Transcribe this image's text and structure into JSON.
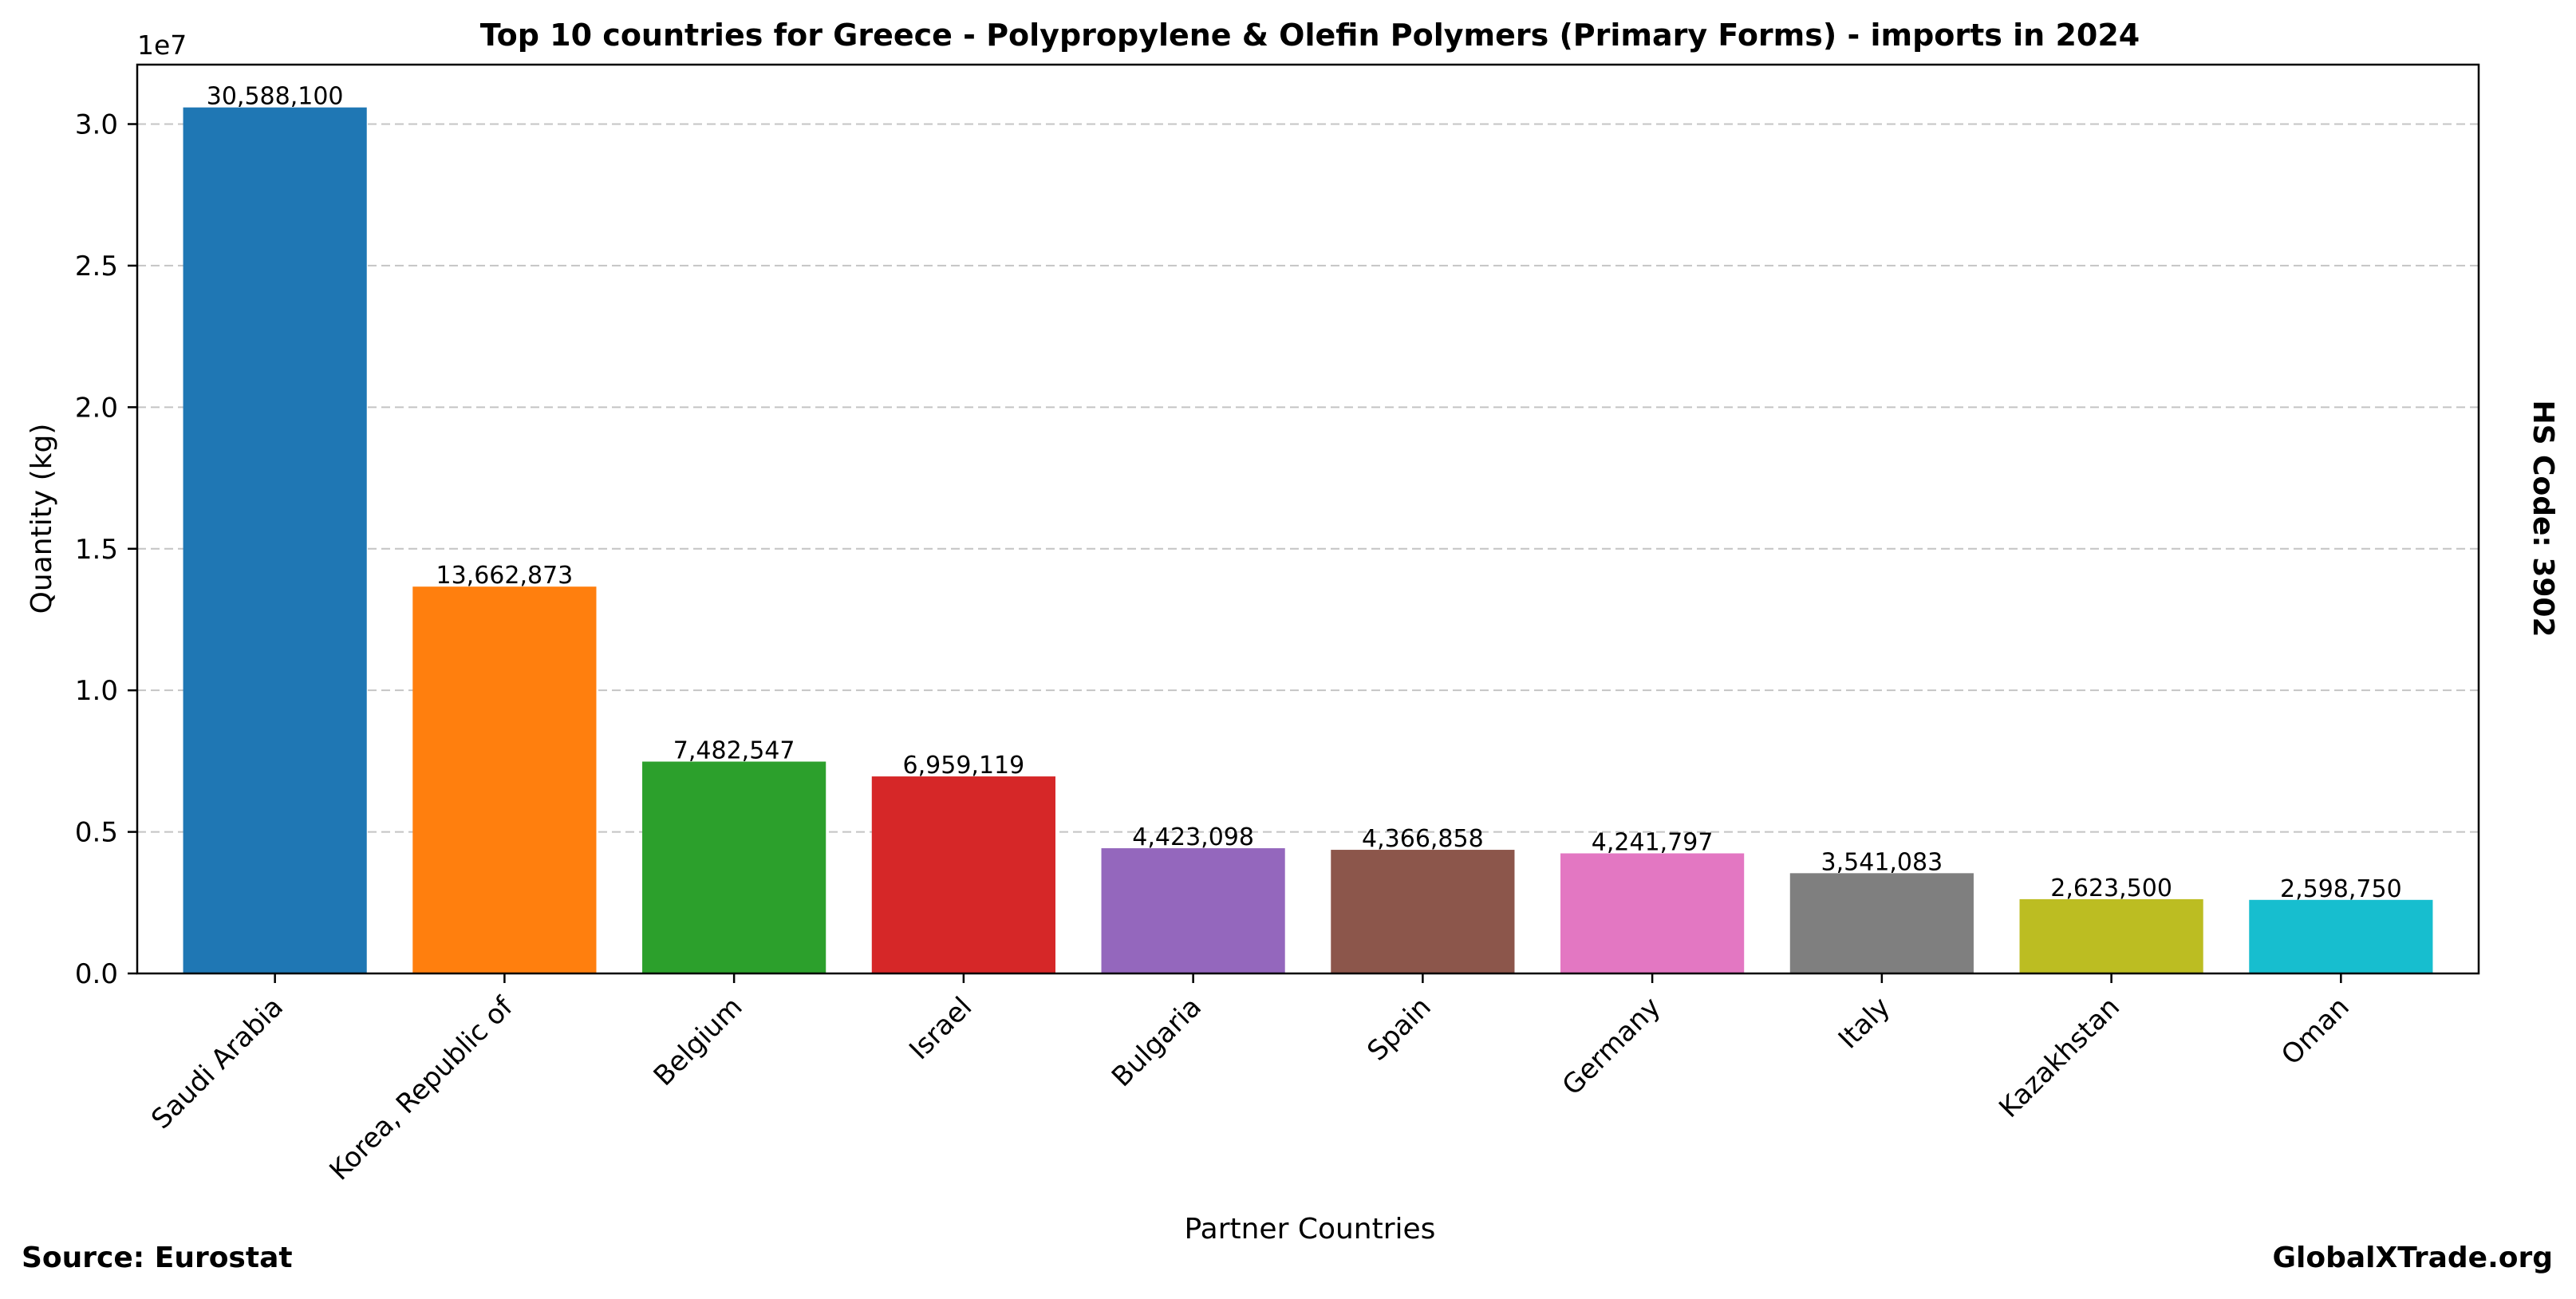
{
  "chart_data": {
    "type": "bar",
    "title": "Top 10 countries for Greece - Polypropylene & Olefin Polymers (Primary Forms) - imports in 2024",
    "xlabel": "Partner Countries",
    "ylabel": "Quantity (kg)",
    "y_offset_label": "1e7",
    "categories": [
      "Saudi Arabia",
      "Korea, Republic of",
      "Belgium",
      "Israel",
      "Bulgaria",
      "Spain",
      "Germany",
      "Italy",
      "Kazakhstan",
      "Oman"
    ],
    "values": [
      30588100,
      13662873,
      7482547,
      6959119,
      4423098,
      4366858,
      4241797,
      3541083,
      2623500,
      2598750
    ],
    "value_labels": [
      "30,588,100",
      "13,662,873",
      "7,482,547",
      "6,959,119",
      "4,423,098",
      "4,366,858",
      "4,241,797",
      "3,541,083",
      "2,623,500",
      "2,598,750"
    ],
    "colors": [
      "#1f77b4",
      "#ff7f0e",
      "#2ca02c",
      "#d62728",
      "#9467bd",
      "#8c564b",
      "#e377c2",
      "#7f7f7f",
      "#bcbd22",
      "#17becf"
    ],
    "ylim": [
      0,
      32100000
    ],
    "yticks": [
      0,
      5000000,
      10000000,
      15000000,
      20000000,
      25000000,
      30000000
    ],
    "ytick_labels": [
      "0.0",
      "0.5",
      "1.0",
      "1.5",
      "2.0",
      "2.5",
      "3.0"
    ],
    "grid": "y-dashed",
    "legend": "none"
  },
  "annotations": {
    "hs_code": "HS Code: 3902",
    "source": "Source: Eurostat",
    "brand": "GlobalXTrade.org"
  }
}
